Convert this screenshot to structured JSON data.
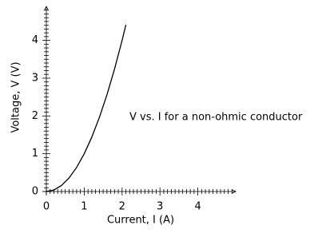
{
  "chart_data": {
    "type": "line",
    "xlabel": "Current, I (A)",
    "ylabel": "Voltage, V (V)",
    "annotation": "V vs. I for a non-ohmic conductor",
    "x": [
      0,
      0.2,
      0.4,
      0.6,
      0.8,
      1.0,
      1.2,
      1.4,
      1.6,
      1.8,
      2.0,
      2.1
    ],
    "series": [
      {
        "color": "#000000",
        "values": [
          0,
          0.04,
          0.16,
          0.36,
          0.64,
          1.0,
          1.44,
          1.96,
          2.56,
          3.24,
          4.0,
          4.41
        ]
      }
    ],
    "xlim": [
      0,
      5
    ],
    "ylim": [
      0,
      4.9
    ],
    "xticks": [
      0,
      1,
      2,
      3,
      4
    ],
    "yticks": [
      0,
      1,
      2,
      3,
      4
    ],
    "xminorticks": [
      0.1,
      0.2,
      0.3,
      0.4,
      0.5,
      0.6,
      0.7,
      0.8,
      0.9,
      1.1,
      1.2,
      1.3,
      1.4,
      1.5,
      1.6,
      1.7,
      1.8,
      1.9,
      2.1,
      2.2,
      2.3,
      2.4,
      2.5,
      2.6,
      2.7,
      2.8,
      2.9,
      3.1,
      3.2,
      3.3,
      3.4,
      3.5,
      3.6,
      3.7,
      3.8,
      3.9,
      4.1,
      4.2,
      4.3,
      4.4,
      4.5,
      4.6,
      4.7,
      4.8,
      4.9
    ],
    "yminorticks": [
      0.1,
      0.2,
      0.3,
      0.4,
      0.5,
      0.6,
      0.7,
      0.8,
      0.9,
      1.1,
      1.2,
      1.3,
      1.4,
      1.5,
      1.6,
      1.7,
      1.8,
      1.9,
      2.1,
      2.2,
      2.3,
      2.4,
      2.5,
      2.6,
      2.7,
      2.8,
      2.9,
      3.1,
      3.2,
      3.3,
      3.4,
      3.5,
      3.6,
      3.7,
      3.8,
      3.9,
      4.1,
      4.2,
      4.3,
      4.4,
      4.5,
      4.6,
      4.7,
      4.8
    ]
  }
}
